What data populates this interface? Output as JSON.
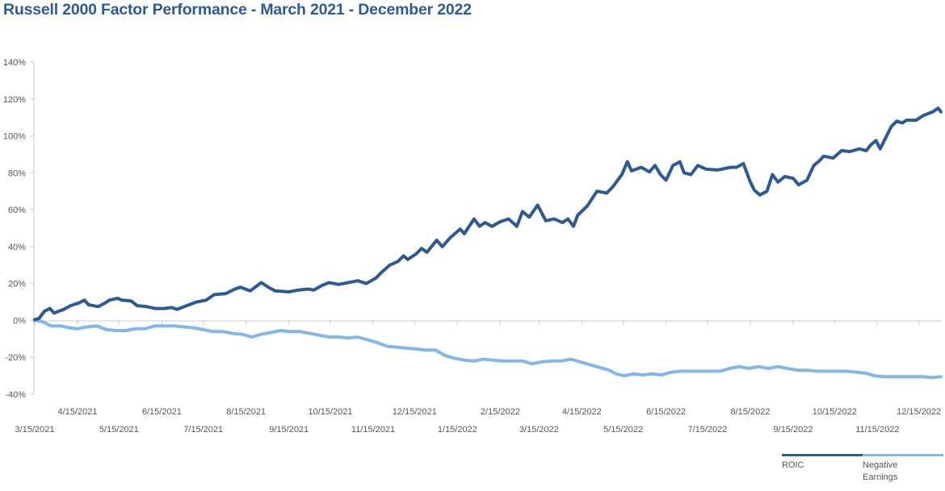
{
  "chart_data": {
    "type": "line",
    "title": "Russell 2000 Factor Performance - March 2021 - December 2022",
    "xlabel": "",
    "ylabel": "",
    "x_range": [
      "3/15/2021",
      "12/31/2022"
    ],
    "ylim": [
      -40,
      140
    ],
    "y_ticks": [
      {
        "value": 140,
        "label": "140%"
      },
      {
        "value": 120,
        "label": "120%"
      },
      {
        "value": 100,
        "label": "100%"
      },
      {
        "value": 80,
        "label": "80%"
      },
      {
        "value": 60,
        "label": "60%"
      },
      {
        "value": 40,
        "label": "40%"
      },
      {
        "value": 20,
        "label": "20%"
      },
      {
        "value": 0,
        "label": "0%"
      },
      {
        "value": -20,
        "label": "-20%"
      },
      {
        "value": -40,
        "label": "-40%"
      }
    ],
    "x_ticks": [
      {
        "date": "2021-03-15",
        "label": "3/15/2021"
      },
      {
        "date": "2021-04-15",
        "label": "4/15/2021"
      },
      {
        "date": "2021-05-15",
        "label": "5/15/2021"
      },
      {
        "date": "2021-06-15",
        "label": "6/15/2021"
      },
      {
        "date": "2021-07-15",
        "label": "7/15/2021"
      },
      {
        "date": "2021-08-15",
        "label": "8/15/2021"
      },
      {
        "date": "2021-09-15",
        "label": "9/15/2021"
      },
      {
        "date": "2021-10-15",
        "label": "10/15/2021"
      },
      {
        "date": "2021-11-15",
        "label": "11/15/2021"
      },
      {
        "date": "2021-12-15",
        "label": "12/15/2021"
      },
      {
        "date": "2022-01-15",
        "label": "1/15/2022"
      },
      {
        "date": "2022-02-15",
        "label": "2/15/2022"
      },
      {
        "date": "2022-03-15",
        "label": "3/15/2022"
      },
      {
        "date": "2022-04-15",
        "label": "4/15/2022"
      },
      {
        "date": "2022-05-15",
        "label": "5/15/2022"
      },
      {
        "date": "2022-06-15",
        "label": "6/15/2022"
      },
      {
        "date": "2022-07-15",
        "label": "7/15/2022"
      },
      {
        "date": "2022-08-15",
        "label": "8/15/2022"
      },
      {
        "date": "2022-09-15",
        "label": "9/15/2022"
      },
      {
        "date": "2022-10-15",
        "label": "10/15/2022"
      },
      {
        "date": "2022-11-15",
        "label": "11/15/2022"
      },
      {
        "date": "2022-12-15",
        "label": "12/15/2022"
      }
    ],
    "grid": false,
    "legend_position": "bottom-right",
    "series": [
      {
        "name": "ROIC",
        "color": "#2e5a94",
        "points": [
          [
            "2021-03-15",
            0.5
          ],
          [
            "2021-03-18",
            1
          ],
          [
            "2021-03-22",
            5
          ],
          [
            "2021-03-26",
            6.5
          ],
          [
            "2021-03-29",
            4
          ],
          [
            "2021-04-05",
            6
          ],
          [
            "2021-04-10",
            8
          ],
          [
            "2021-04-16",
            9.5
          ],
          [
            "2021-04-20",
            11
          ],
          [
            "2021-04-23",
            8.5
          ],
          [
            "2021-04-30",
            7.5
          ],
          [
            "2021-05-05",
            9.5
          ],
          [
            "2021-05-08",
            11
          ],
          [
            "2021-05-14",
            12
          ],
          [
            "2021-05-17",
            11
          ],
          [
            "2021-05-24",
            10.5
          ],
          [
            "2021-05-28",
            8
          ],
          [
            "2021-06-04",
            7.5
          ],
          [
            "2021-06-10",
            6.5
          ],
          [
            "2021-06-17",
            6.5
          ],
          [
            "2021-06-22",
            7
          ],
          [
            "2021-06-26",
            6
          ],
          [
            "2021-07-03",
            8
          ],
          [
            "2021-07-10",
            10
          ],
          [
            "2021-07-17",
            11
          ],
          [
            "2021-07-23",
            14
          ],
          [
            "2021-07-31",
            14.5
          ],
          [
            "2021-08-07",
            17
          ],
          [
            "2021-08-11",
            18
          ],
          [
            "2021-08-18",
            16
          ],
          [
            "2021-08-26",
            20.5
          ],
          [
            "2021-08-31",
            18
          ],
          [
            "2021-09-05",
            16
          ],
          [
            "2021-09-15",
            15.5
          ],
          [
            "2021-09-22",
            16.5
          ],
          [
            "2021-09-29",
            17
          ],
          [
            "2021-10-03",
            16.5
          ],
          [
            "2021-10-09",
            19
          ],
          [
            "2021-10-14",
            20.5
          ],
          [
            "2021-10-21",
            19.5
          ],
          [
            "2021-10-28",
            20.5
          ],
          [
            "2021-11-04",
            21.5
          ],
          [
            "2021-11-10",
            20
          ],
          [
            "2021-11-17",
            23
          ],
          [
            "2021-11-21",
            26
          ],
          [
            "2021-11-27",
            30
          ],
          [
            "2021-12-03",
            32
          ],
          [
            "2021-12-07",
            35
          ],
          [
            "2021-12-10",
            33
          ],
          [
            "2021-12-16",
            36
          ],
          [
            "2021-12-20",
            39
          ],
          [
            "2021-12-24",
            37
          ],
          [
            "2021-12-31",
            43.5
          ],
          [
            "2022-01-04",
            40
          ],
          [
            "2022-01-10",
            45
          ],
          [
            "2022-01-17",
            49.5
          ],
          [
            "2022-01-20",
            47
          ],
          [
            "2022-01-27",
            55
          ],
          [
            "2022-01-31",
            51
          ],
          [
            "2022-02-04",
            53
          ],
          [
            "2022-02-09",
            51
          ],
          [
            "2022-02-15",
            53.5
          ],
          [
            "2022-02-21",
            55
          ],
          [
            "2022-02-27",
            51
          ],
          [
            "2022-03-03",
            59
          ],
          [
            "2022-03-08",
            56
          ],
          [
            "2022-03-14",
            62.5
          ],
          [
            "2022-03-20",
            54
          ],
          [
            "2022-03-26",
            55
          ],
          [
            "2022-04-01",
            53
          ],
          [
            "2022-04-05",
            55
          ],
          [
            "2022-04-09",
            51
          ],
          [
            "2022-04-12",
            57
          ],
          [
            "2022-04-19",
            62
          ],
          [
            "2022-04-26",
            70
          ],
          [
            "2022-05-03",
            69
          ],
          [
            "2022-05-07",
            72
          ],
          [
            "2022-05-10",
            75
          ],
          [
            "2022-05-14",
            79
          ],
          [
            "2022-05-18",
            86
          ],
          [
            "2022-05-21",
            81
          ],
          [
            "2022-05-28",
            83
          ],
          [
            "2022-06-03",
            80.5
          ],
          [
            "2022-06-07",
            84
          ],
          [
            "2022-06-11",
            79
          ],
          [
            "2022-06-15",
            76
          ],
          [
            "2022-06-20",
            84
          ],
          [
            "2022-06-25",
            86
          ],
          [
            "2022-06-28",
            80
          ],
          [
            "2022-07-03",
            79
          ],
          [
            "2022-07-08",
            84
          ],
          [
            "2022-07-14",
            82
          ],
          [
            "2022-07-22",
            81.5
          ],
          [
            "2022-08-01",
            83
          ],
          [
            "2022-08-05",
            83
          ],
          [
            "2022-08-10",
            85
          ],
          [
            "2022-08-15",
            75
          ],
          [
            "2022-08-18",
            70.5
          ],
          [
            "2022-08-22",
            68
          ],
          [
            "2022-08-27",
            70
          ],
          [
            "2022-08-31",
            79
          ],
          [
            "2022-09-04",
            75
          ],
          [
            "2022-09-09",
            78
          ],
          [
            "2022-09-15",
            77
          ],
          [
            "2022-09-19",
            73.5
          ],
          [
            "2022-09-25",
            76
          ],
          [
            "2022-09-30",
            84
          ],
          [
            "2022-10-04",
            86.5
          ],
          [
            "2022-10-07",
            89
          ],
          [
            "2022-10-14",
            88
          ],
          [
            "2022-10-20",
            92
          ],
          [
            "2022-10-26",
            91.5
          ],
          [
            "2022-11-02",
            93
          ],
          [
            "2022-11-07",
            92
          ],
          [
            "2022-11-10",
            95
          ],
          [
            "2022-11-14",
            97.5
          ],
          [
            "2022-11-17",
            93
          ],
          [
            "2022-11-21",
            99
          ],
          [
            "2022-11-25",
            105
          ],
          [
            "2022-11-29",
            108
          ],
          [
            "2022-12-03",
            107
          ],
          [
            "2022-12-06",
            108.5
          ],
          [
            "2022-12-13",
            108.5
          ],
          [
            "2022-12-18",
            111
          ],
          [
            "2022-12-25",
            113
          ],
          [
            "2022-12-29",
            115
          ],
          [
            "2022-12-31",
            113
          ]
        ]
      },
      {
        "name": "Negative Earnings",
        "color": "#84b6e8",
        "points": [
          [
            "2021-03-15",
            0
          ],
          [
            "2021-03-20",
            -0.5
          ],
          [
            "2021-03-27",
            -3
          ],
          [
            "2021-04-03",
            -3
          ],
          [
            "2021-04-09",
            -4
          ],
          [
            "2021-04-15",
            -4.5
          ],
          [
            "2021-04-22",
            -3.5
          ],
          [
            "2021-04-29",
            -3
          ],
          [
            "2021-05-06",
            -5
          ],
          [
            "2021-05-13",
            -5.5
          ],
          [
            "2021-05-20",
            -5.5
          ],
          [
            "2021-05-27",
            -4.5
          ],
          [
            "2021-06-03",
            -4.5
          ],
          [
            "2021-06-10",
            -3
          ],
          [
            "2021-06-17",
            -3
          ],
          [
            "2021-06-24",
            -3
          ],
          [
            "2021-07-01",
            -3.5
          ],
          [
            "2021-07-08",
            -4
          ],
          [
            "2021-07-15",
            -5
          ],
          [
            "2021-07-22",
            -6
          ],
          [
            "2021-07-29",
            -6
          ],
          [
            "2021-08-05",
            -7
          ],
          [
            "2021-08-12",
            -7.5
          ],
          [
            "2021-08-19",
            -9
          ],
          [
            "2021-08-26",
            -7.5
          ],
          [
            "2021-09-02",
            -6.5
          ],
          [
            "2021-09-09",
            -5.5
          ],
          [
            "2021-09-16",
            -6
          ],
          [
            "2021-09-23",
            -6
          ],
          [
            "2021-09-30",
            -7
          ],
          [
            "2021-10-07",
            -8
          ],
          [
            "2021-10-14",
            -9
          ],
          [
            "2021-10-21",
            -9
          ],
          [
            "2021-10-28",
            -9.5
          ],
          [
            "2021-11-04",
            -9
          ],
          [
            "2021-11-11",
            -10.5
          ],
          [
            "2021-11-18",
            -12
          ],
          [
            "2021-11-25",
            -14
          ],
          [
            "2021-12-02",
            -14.5
          ],
          [
            "2021-12-09",
            -15
          ],
          [
            "2021-12-16",
            -15.5
          ],
          [
            "2021-12-23",
            -16
          ],
          [
            "2021-12-30",
            -16
          ],
          [
            "2022-01-06",
            -19
          ],
          [
            "2022-01-13",
            -20.5
          ],
          [
            "2022-01-20",
            -21.5
          ],
          [
            "2022-01-27",
            -22
          ],
          [
            "2022-02-03",
            -21
          ],
          [
            "2022-02-10",
            -21.5
          ],
          [
            "2022-02-17",
            -22
          ],
          [
            "2022-02-24",
            -22
          ],
          [
            "2022-03-03",
            -22
          ],
          [
            "2022-03-10",
            -23.5
          ],
          [
            "2022-03-17",
            -22.5
          ],
          [
            "2022-03-24",
            -22
          ],
          [
            "2022-03-31",
            -22
          ],
          [
            "2022-04-07",
            -21
          ],
          [
            "2022-04-14",
            -22.5
          ],
          [
            "2022-04-21",
            -24
          ],
          [
            "2022-04-28",
            -25.5
          ],
          [
            "2022-05-05",
            -27
          ],
          [
            "2022-05-10",
            -29
          ],
          [
            "2022-05-16",
            -30
          ],
          [
            "2022-05-22",
            -29
          ],
          [
            "2022-05-29",
            -29.5
          ],
          [
            "2022-06-05",
            -29
          ],
          [
            "2022-06-12",
            -29.5
          ],
          [
            "2022-06-19",
            -28
          ],
          [
            "2022-06-26",
            -27.5
          ],
          [
            "2022-07-03",
            -27.5
          ],
          [
            "2022-07-10",
            -27.5
          ],
          [
            "2022-07-17",
            -27.5
          ],
          [
            "2022-07-24",
            -27.5
          ],
          [
            "2022-07-31",
            -26
          ],
          [
            "2022-08-07",
            -25
          ],
          [
            "2022-08-14",
            -26
          ],
          [
            "2022-08-21",
            -25
          ],
          [
            "2022-08-28",
            -26
          ],
          [
            "2022-09-04",
            -25
          ],
          [
            "2022-09-11",
            -26
          ],
          [
            "2022-09-18",
            -27
          ],
          [
            "2022-09-25",
            -27
          ],
          [
            "2022-10-02",
            -27.5
          ],
          [
            "2022-10-09",
            -27.5
          ],
          [
            "2022-10-16",
            -27.5
          ],
          [
            "2022-10-23",
            -27.5
          ],
          [
            "2022-10-30",
            -28
          ],
          [
            "2022-11-06",
            -28.5
          ],
          [
            "2022-11-13",
            -30
          ],
          [
            "2022-11-20",
            -30.5
          ],
          [
            "2022-11-27",
            -30.5
          ],
          [
            "2022-12-04",
            -30.5
          ],
          [
            "2022-12-11",
            -30.5
          ],
          [
            "2022-12-18",
            -30.5
          ],
          [
            "2022-12-25",
            -31
          ],
          [
            "2022-12-31",
            -30.5
          ]
        ]
      }
    ]
  }
}
